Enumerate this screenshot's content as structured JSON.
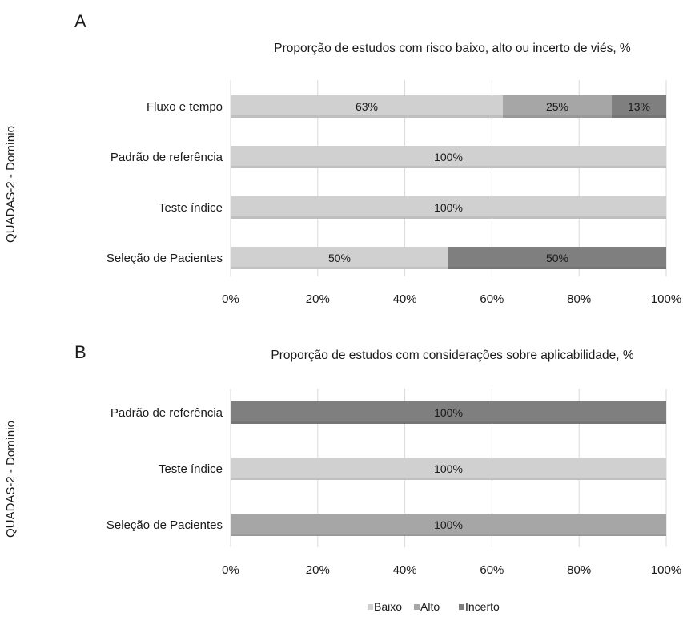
{
  "colors": {
    "baixo": "#d0d0d0",
    "alto": "#a6a6a6",
    "incerto": "#7f7f7f",
    "gridline": "#d9d9d9",
    "text": "#1a1a1a"
  },
  "legend": {
    "items": [
      {
        "key": "baixo",
        "label": "Baixo"
      },
      {
        "key": "alto",
        "label": "Alto"
      },
      {
        "key": "incerto",
        "label": "Incerto"
      }
    ]
  },
  "chart_data": [
    {
      "type": "bar",
      "orientation": "horizontal",
      "stacked": true,
      "panel_label": "A",
      "title": "Proporção de estudos com risco baixo, alto ou incerto de viés, %",
      "ylabel": "QUADAS-2 - Domínio",
      "xlabel": "",
      "xlim": [
        0,
        100
      ],
      "xticks": [
        "0%",
        "20%",
        "40%",
        "60%",
        "80%",
        "100%"
      ],
      "grid": true,
      "legend_position": "bottom",
      "categories": [
        "Fluxo e tempo",
        "Padrão de referência",
        "Teste índice",
        "Seleção de Pacientes"
      ],
      "series": [
        {
          "name": "Baixo",
          "key": "baixo",
          "values": [
            62.5,
            100,
            100,
            50
          ],
          "labels": [
            "63%",
            "100%",
            "100%",
            "50%"
          ]
        },
        {
          "name": "Alto",
          "key": "alto",
          "values": [
            25,
            0,
            0,
            0
          ],
          "labels": [
            "25%",
            "",
            "",
            ""
          ]
        },
        {
          "name": "Incerto",
          "key": "incerto",
          "values": [
            12.5,
            0,
            0,
            50
          ],
          "labels": [
            "13%",
            "",
            "",
            "50%"
          ]
        }
      ]
    },
    {
      "type": "bar",
      "orientation": "horizontal",
      "stacked": true,
      "panel_label": "B",
      "title": "Proporção de estudos com considerações sobre aplicabilidade, %",
      "ylabel": "QUADAS-2 - Domínio",
      "xlabel": "",
      "xlim": [
        0,
        100
      ],
      "xticks": [
        "0%",
        "20%",
        "40%",
        "60%",
        "80%",
        "100%"
      ],
      "grid": true,
      "legend_position": "bottom",
      "categories": [
        "Padrão de referência",
        "Teste índice",
        "Seleção de Pacientes"
      ],
      "series": [
        {
          "name": "Baixo",
          "key": "baixo",
          "values": [
            0,
            100,
            0
          ],
          "labels": [
            "",
            "100%",
            ""
          ]
        },
        {
          "name": "Alto",
          "key": "alto",
          "values": [
            0,
            0,
            100
          ],
          "labels": [
            "",
            "",
            "100%"
          ]
        },
        {
          "name": "Incerto",
          "key": "incerto",
          "values": [
            100,
            0,
            0
          ],
          "labels": [
            "100%",
            "",
            ""
          ]
        }
      ]
    }
  ]
}
